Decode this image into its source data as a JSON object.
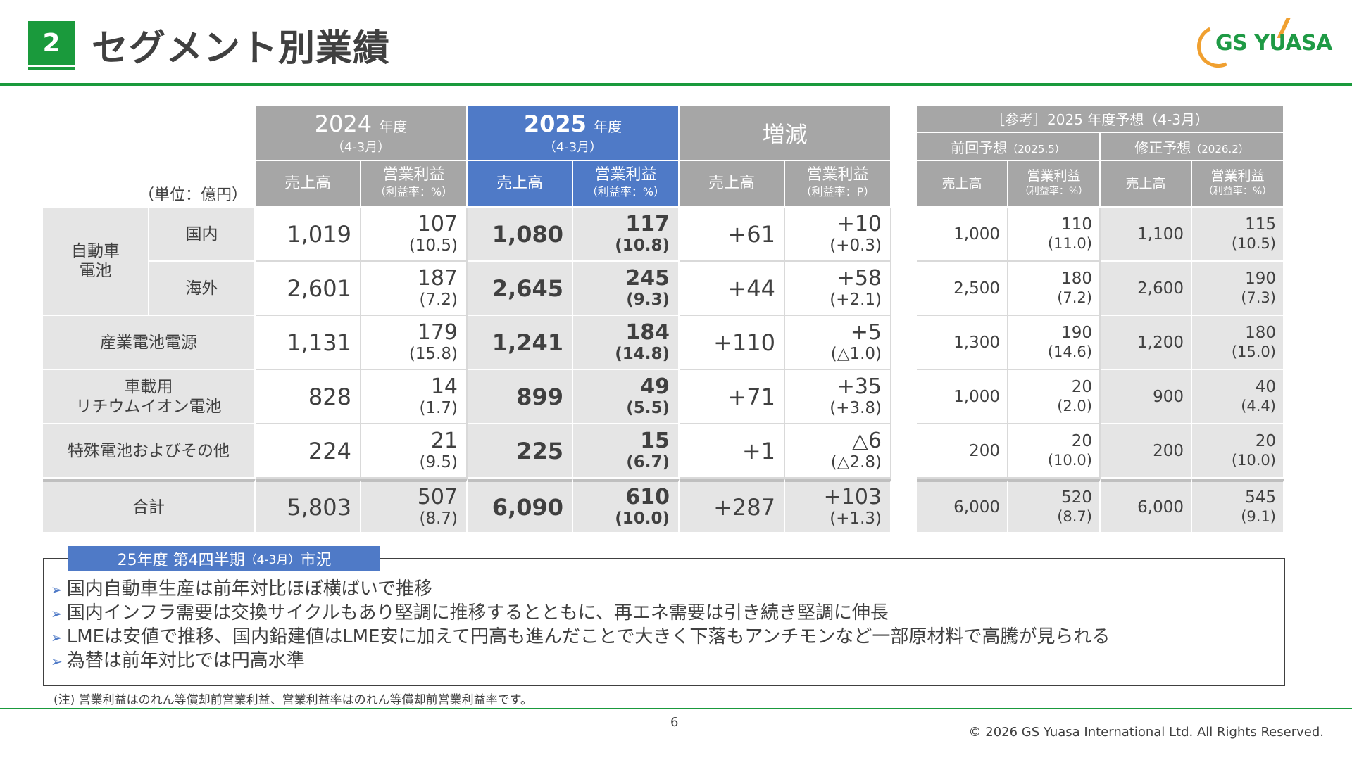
{
  "header": {
    "section_number": "2",
    "title": "セグメント別業績",
    "logo_text": "GS YUASA"
  },
  "table": {
    "unit_label": "（単位：億円）",
    "col_groups": {
      "y2024": {
        "year": "2024",
        "suffix": "年度",
        "period": "（4-3月）"
      },
      "y2025": {
        "year": "2025",
        "suffix": "年度",
        "period": "（4-3月）"
      },
      "change": {
        "label": "増減"
      }
    },
    "columns": {
      "sales": "売上高",
      "op": "営業利益",
      "op_sub": "（利益率：%）",
      "op_sub_p": "（利益率：P）"
    },
    "seg_auto": "自動車\n電池",
    "rows": [
      {
        "label": "国内",
        "s24": "1,019",
        "o24": "107",
        "m24": "(10.5)",
        "s25": "1,080",
        "o25": "117",
        "m25": "(10.8)",
        "ds": "+61",
        "do": "+10",
        "dm": "(+0.3)"
      },
      {
        "label": "海外",
        "s24": "2,601",
        "o24": "187",
        "m24": "(7.2)",
        "s25": "2,645",
        "o25": "245",
        "m25": "(9.3)",
        "ds": "+44",
        "do": "+58",
        "dm": "(+2.1)"
      },
      {
        "label": "産業電池電源",
        "s24": "1,131",
        "o24": "179",
        "m24": "(15.8)",
        "s25": "1,241",
        "o25": "184",
        "m25": "(14.8)",
        "ds": "+110",
        "do": "+5",
        "dm": "(△1.0)"
      },
      {
        "label": "車載用\nリチウムイオン電池",
        "s24": "828",
        "o24": "14",
        "m24": "(1.7)",
        "s25": "899",
        "o25": "49",
        "m25": "(5.5)",
        "ds": "+71",
        "do": "+35",
        "dm": "(+3.8)"
      },
      {
        "label": "特殊電池およびその他",
        "s24": "224",
        "o24": "21",
        "m24": "(9.5)",
        "s25": "225",
        "o25": "15",
        "m25": "(6.7)",
        "ds": "+1",
        "do": "△6",
        "dm": "(△2.8)"
      },
      {
        "label": "合計",
        "s24": "5,803",
        "o24": "507",
        "m24": "(8.7)",
        "s25": "6,090",
        "o25": "610",
        "m25": "(10.0)",
        "ds": "+287",
        "do": "+103",
        "dm": "(+1.3)"
      }
    ]
  },
  "ref": {
    "title": "［参考］2025 年度予想（4-3月）",
    "prev": "前回予想",
    "prev_date": "（2025.5）",
    "rev": "修正予想",
    "rev_date": "（2026.2）",
    "sales": "売上高",
    "op": "営業利益",
    "op_sub": "（利益率：%）",
    "rows": [
      {
        "ps": "1,000",
        "po": "110",
        "pm": "(11.0)",
        "rs": "1,100",
        "ro": "115",
        "rm": "(10.5)"
      },
      {
        "ps": "2,500",
        "po": "180",
        "pm": "(7.2)",
        "rs": "2,600",
        "ro": "190",
        "rm": "(7.3)"
      },
      {
        "ps": "1,300",
        "po": "190",
        "pm": "(14.6)",
        "rs": "1,200",
        "ro": "180",
        "rm": "(15.0)"
      },
      {
        "ps": "1,000",
        "po": "20",
        "pm": "(2.0)",
        "rs": "900",
        "ro": "40",
        "rm": "(4.4)"
      },
      {
        "ps": "200",
        "po": "20",
        "pm": "(10.0)",
        "rs": "200",
        "ro": "20",
        "rm": "(10.0)"
      },
      {
        "ps": "6,000",
        "po": "520",
        "pm": "(8.7)",
        "rs": "6,000",
        "ro": "545",
        "rm": "(9.1)"
      }
    ]
  },
  "market": {
    "tab_main": "25年度 第4四半期",
    "tab_period": "（4-3月）",
    "tab_end": "市況",
    "bullets": [
      "国内自動車生産は前年対比ほぼ横ばいで推移",
      "国内インフラ需要は交換サイクルもあり堅調に推移するとともに、再エネ需要は引き続き堅調に伸長",
      "LMEは安値で推移、国内鉛建値はLME安に加えて円高も進んだことで大きく下落もアンチモンなど一部原材料で高騰が見られる",
      "為替は前年対比では円高水準"
    ]
  },
  "footer": {
    "note": "(注) 営業利益はのれん等償却前営業利益、営業利益率はのれん等償却前営業利益率です。",
    "page": "6",
    "copyright": "© 2026 GS Yuasa International Ltd. All Rights Reserved."
  }
}
